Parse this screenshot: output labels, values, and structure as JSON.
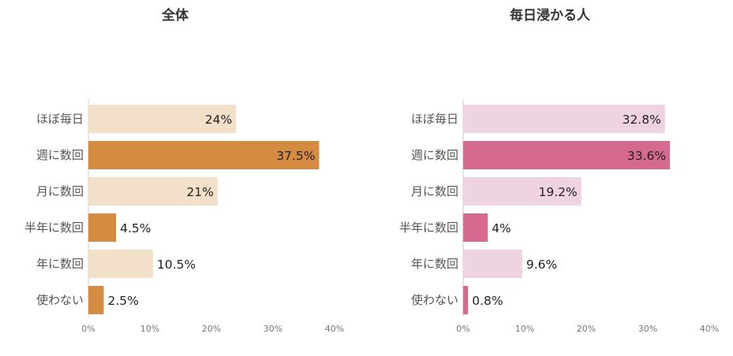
{
  "chart_data": [
    {
      "type": "bar",
      "orientation": "horizontal",
      "title": "全体",
      "categories": [
        "ほぼ毎日",
        "週に数回",
        "月に数回",
        "半年に数回",
        "年に数回",
        "使わない"
      ],
      "values": [
        24,
        37.5,
        21,
        4.5,
        10.5,
        2.5
      ],
      "value_labels": [
        "24%",
        "37.5%",
        "21%",
        "4.5%",
        "10.5%",
        "2.5%"
      ],
      "xlim": [
        0,
        40
      ],
      "xticks": [
        "0%",
        "10%",
        "20%",
        "30%",
        "40%"
      ],
      "colors": {
        "light": "#f2e0c8",
        "dark": "#d68b43"
      },
      "bar_shades": [
        "light",
        "dark",
        "light",
        "dark",
        "light",
        "dark"
      ],
      "grid": false
    },
    {
      "type": "bar",
      "orientation": "horizontal",
      "title": "毎日浸かる人",
      "categories": [
        "ほぼ毎日",
        "週に数回",
        "月に数回",
        "半年に数回",
        "年に数回",
        "使わない"
      ],
      "values": [
        32.8,
        33.6,
        19.2,
        4,
        9.6,
        0.8
      ],
      "value_labels": [
        "32.8%",
        "33.6%",
        "19.2%",
        "4%",
        "9.6%",
        "0.8%"
      ],
      "xlim": [
        0,
        40
      ],
      "xticks": [
        "0%",
        "10%",
        "20%",
        "30%",
        "40%"
      ],
      "colors": {
        "light": "#f0d3e2",
        "dark": "#d6698f"
      },
      "bar_shades": [
        "light",
        "dark",
        "light",
        "dark",
        "light",
        "dark"
      ],
      "grid": false
    }
  ]
}
